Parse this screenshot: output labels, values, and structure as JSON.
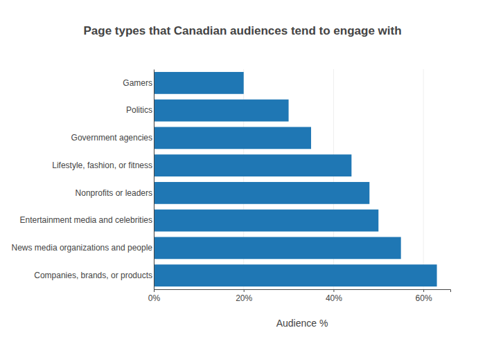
{
  "chart_data": {
    "type": "bar",
    "orientation": "horizontal",
    "title": "Page types that Canadian audiences tend to engage with",
    "xlabel": "Audience %",
    "categories": [
      "Gamers",
      "Politics",
      "Government agencies",
      "Lifestyle, fashion, or fitness",
      "Nonprofits or leaders",
      "Entertainment media and celebrities",
      "News media organizations and people",
      "Companies, brands, or products"
    ],
    "values": [
      20,
      30,
      35,
      44,
      48,
      50,
      55,
      63
    ],
    "color": "#1f77b4",
    "xlim": [
      0,
      66
    ],
    "xticks": [
      {
        "value": 0,
        "label": "0%"
      },
      {
        "value": 20,
        "label": "20%"
      },
      {
        "value": 40,
        "label": "40%"
      },
      {
        "value": 60,
        "label": "60%"
      }
    ],
    "grid": true
  }
}
